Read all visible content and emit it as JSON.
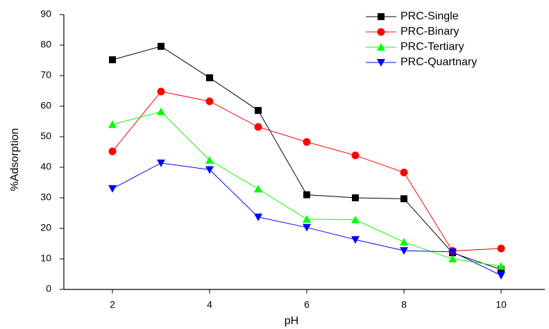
{
  "chart_data": {
    "type": "line",
    "x_label": "pH",
    "y_label": "%Adsorption",
    "x": [
      2,
      3,
      4,
      5,
      6,
      7,
      8,
      9,
      10
    ],
    "series": [
      {
        "name": "PRC-Single",
        "color": "#000000",
        "marker": "square",
        "values": [
          75.2,
          79.6,
          69.3,
          58.6,
          31,
          30,
          29.7,
          12,
          6.5
        ]
      },
      {
        "name": "PRC-Binary",
        "color": "#ff0000",
        "marker": "circle",
        "values": [
          45.2,
          64.8,
          61.6,
          53.2,
          48.3,
          43.9,
          38.3,
          12.6,
          13.4
        ]
      },
      {
        "name": "PRC-Tertiary",
        "color": "#00ff00",
        "marker": "triangle-up",
        "values": [
          54,
          58.2,
          42.3,
          32.9,
          23,
          22.8,
          15.5,
          10,
          7.6
        ]
      },
      {
        "name": "PRC-Quartnary",
        "color": "#0000ff",
        "marker": "triangle-down",
        "values": [
          33,
          41.4,
          39.2,
          23.7,
          20.3,
          16.3,
          12.7,
          12.3,
          4.6
        ]
      }
    ],
    "xlim": [
      1,
      10.9
    ],
    "ylim": [
      0,
      90
    ],
    "xticks": [
      2,
      4,
      6,
      8,
      10
    ],
    "yticks": [
      0,
      10,
      20,
      30,
      40,
      50,
      60,
      70,
      80,
      90
    ],
    "legend": "upper right",
    "grid": false
  }
}
